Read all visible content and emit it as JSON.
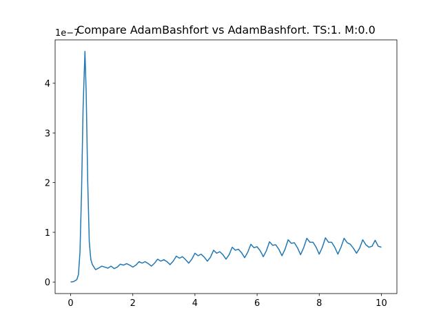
{
  "chart_data": {
    "type": "line",
    "title": "Compare AdamBashfort vs AdamBashfort. TS:1. M:0.0",
    "y_offset_label": "1e−7",
    "x": [
      0,
      0.1,
      0.2,
      0.25,
      0.3,
      0.35,
      0.4,
      0.46,
      0.5,
      0.55,
      0.6,
      0.65,
      0.7,
      0.8,
      0.9,
      1.0,
      1.1,
      1.2,
      1.3,
      1.4,
      1.5,
      1.6,
      1.7,
      1.8,
      1.9,
      2.0,
      2.1,
      2.2,
      2.3,
      2.4,
      2.5,
      2.6,
      2.7,
      2.8,
      2.9,
      3.0,
      3.1,
      3.2,
      3.3,
      3.4,
      3.5,
      3.6,
      3.7,
      3.8,
      3.9,
      4.0,
      4.1,
      4.2,
      4.3,
      4.4,
      4.5,
      4.6,
      4.7,
      4.8,
      4.9,
      5.0,
      5.1,
      5.2,
      5.3,
      5.4,
      5.5,
      5.6,
      5.7,
      5.8,
      5.9,
      6.0,
      6.1,
      6.2,
      6.3,
      6.4,
      6.5,
      6.6,
      6.7,
      6.8,
      6.9,
      7.0,
      7.1,
      7.2,
      7.3,
      7.4,
      7.5,
      7.6,
      7.7,
      7.8,
      7.9,
      8.0,
      8.1,
      8.2,
      8.3,
      8.4,
      8.5,
      8.6,
      8.7,
      8.8,
      8.9,
      9.0,
      9.1,
      9.2,
      9.3,
      9.4,
      9.5,
      9.6,
      9.7,
      9.8,
      9.9,
      10.0
    ],
    "series": [
      {
        "color": "#1f77b4",
        "values": [
          0,
          0.01,
          0.05,
          0.15,
          0.6,
          1.8,
          3.5,
          4.64,
          3.8,
          2.0,
          0.8,
          0.45,
          0.35,
          0.25,
          0.28,
          0.32,
          0.3,
          0.28,
          0.32,
          0.27,
          0.3,
          0.36,
          0.34,
          0.37,
          0.34,
          0.3,
          0.34,
          0.41,
          0.38,
          0.41,
          0.37,
          0.32,
          0.38,
          0.46,
          0.42,
          0.45,
          0.41,
          0.35,
          0.42,
          0.52,
          0.48,
          0.51,
          0.45,
          0.38,
          0.46,
          0.58,
          0.53,
          0.56,
          0.5,
          0.42,
          0.5,
          0.64,
          0.58,
          0.61,
          0.55,
          0.46,
          0.55,
          0.7,
          0.64,
          0.66,
          0.59,
          0.49,
          0.6,
          0.76,
          0.69,
          0.71,
          0.63,
          0.51,
          0.63,
          0.81,
          0.74,
          0.75,
          0.66,
          0.53,
          0.66,
          0.85,
          0.78,
          0.79,
          0.69,
          0.55,
          0.69,
          0.88,
          0.8,
          0.8,
          0.7,
          0.56,
          0.7,
          0.89,
          0.8,
          0.8,
          0.7,
          0.56,
          0.7,
          0.88,
          0.79,
          0.76,
          0.68,
          0.58,
          0.68,
          0.85,
          0.75,
          0.7,
          0.72,
          0.84,
          0.72,
          0.7
        ]
      }
    ],
    "xlim": [
      -0.5,
      10.5
    ],
    "ylim": [
      -0.232,
      4.872
    ],
    "xticks": [
      0,
      2,
      4,
      6,
      8,
      10
    ],
    "yticks": [
      0,
      1,
      2,
      3,
      4
    ]
  }
}
